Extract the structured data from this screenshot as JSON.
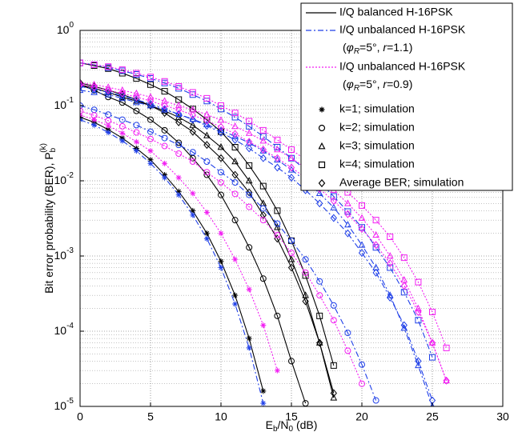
{
  "chart_data": {
    "type": "line",
    "log_y": true,
    "grid": true,
    "minor_grid": true,
    "xlabel": [
      "E",
      "b",
      "/N",
      "0",
      " (dB)"
    ],
    "ylabel": [
      "Bit error probability (BER), P",
      "b",
      "(k)"
    ],
    "xlim": [
      0,
      30
    ],
    "xticks": [
      0,
      5,
      10,
      15,
      20,
      25,
      30
    ],
    "ylim": [
      1e-05,
      1
    ],
    "yticks": [
      {
        "value": 1e-05,
        "label": "10",
        "exponent": "-5"
      },
      {
        "value": 0.0001,
        "label": "10",
        "exponent": "-4"
      },
      {
        "value": 0.001,
        "label": "10",
        "exponent": "-3"
      },
      {
        "value": 0.01,
        "label": "10",
        "exponent": "-2"
      },
      {
        "value": 0.1,
        "label": "10",
        "exponent": "-1"
      },
      {
        "value": 1,
        "label": "10",
        "exponent": "0"
      }
    ],
    "legend": "upper right",
    "line_styles": [
      {
        "name": "I/Q balanced H-16PSK",
        "color": "#000000",
        "dash": "none"
      },
      {
        "name": "I/Q unbalanced H-16PSK",
        "note": [
          "(",
          "φ",
          "R",
          "=5°, ",
          "r",
          "=1.1)"
        ],
        "color": "#1f3fe8",
        "dash": "7 3 2 3"
      },
      {
        "name": "I/Q unbalanced H-16PSK",
        "note": [
          "(",
          "φ",
          "R",
          "=5°, ",
          "r",
          "=0.9)"
        ],
        "color": "#f21ef2",
        "dash": "2 2"
      }
    ],
    "marker_styles": [
      {
        "name": "k=1; simulation",
        "marker": "star"
      },
      {
        "name": "k=2; simulation",
        "marker": "circle"
      },
      {
        "name": "k=3; simulation",
        "marker": "triangle"
      },
      {
        "name": "k=4; simulation",
        "marker": "square"
      },
      {
        "name": "Average BER; simulation",
        "marker": "diamond"
      }
    ],
    "x": [
      0,
      1,
      2,
      3,
      4,
      5,
      6,
      7,
      8,
      9,
      10,
      11,
      12,
      13,
      14,
      15,
      16,
      17,
      18,
      19,
      20,
      21,
      22,
      23,
      24,
      25,
      26
    ],
    "groups": [
      {
        "curves": [
          {
            "values": [
              0.07,
              0.06,
              0.048,
              0.037,
              0.027,
              0.019,
              0.012,
              0.0072,
              0.004,
              0.002,
              0.00085,
              0.0003,
              8e-05,
              1.6e-05,
              null,
              null,
              null,
              null,
              null,
              null,
              null,
              null,
              null,
              null,
              null,
              null,
              null
            ]
          },
          {
            "values": [
              0.19,
              0.16,
              0.13,
              0.11,
              0.085,
              0.065,
              0.047,
              0.032,
              0.02,
              0.012,
              0.0065,
              0.003,
              0.0013,
              0.0005,
              0.00016,
              4e-05,
              1.1e-05,
              null,
              null,
              null,
              null,
              null,
              null,
              null,
              null,
              null,
              null
            ]
          },
          {
            "values": [
              0.19,
              0.17,
              0.15,
              0.13,
              0.115,
              0.1,
              0.085,
              0.07,
              0.055,
              0.04,
              0.028,
              0.018,
              0.01,
              0.005,
              0.0024,
              0.0009,
              0.0003,
              7e-05,
              1.3e-05,
              null,
              null,
              null,
              null,
              null,
              null,
              null,
              null
            ]
          },
          {
            "values": [
              0.37,
              0.34,
              0.31,
              0.27,
              0.23,
              0.19,
              0.155,
              0.12,
              0.09,
              0.065,
              0.045,
              0.028,
              0.016,
              0.0085,
              0.004,
              0.0016,
              0.00055,
              0.00016,
              3.5e-05,
              null,
              null,
              null,
              null,
              null,
              null,
              null,
              null
            ]
          },
          {
            "values": [
              0.2,
              0.18,
              0.16,
              0.14,
              0.12,
              0.1,
              0.08,
              0.06,
              0.045,
              0.03,
              0.02,
              0.012,
              0.007,
              0.0035,
              0.0017,
              0.0007,
              0.00025,
              7e-05,
              1.5e-05,
              null,
              null,
              null,
              null,
              null,
              null,
              null,
              null
            ]
          }
        ]
      },
      {
        "curves": [
          {
            "values": [
              0.065,
              0.055,
              0.044,
              0.034,
              0.025,
              0.017,
              0.011,
              0.0065,
              0.0035,
              0.0017,
              0.0007,
              0.00023,
              6e-05,
              1.1e-05,
              null,
              null,
              null,
              null,
              null,
              null,
              null,
              null,
              null,
              null,
              null,
              null,
              null
            ]
          },
          {
            "values": [
              0.1,
              0.088,
              0.076,
              0.065,
              0.055,
              0.045,
              0.037,
              0.03,
              0.024,
              0.018,
              0.013,
              0.0095,
              0.0065,
              0.0043,
              0.0027,
              0.0016,
              0.0009,
              0.00046,
              0.00022,
              9.5e-05,
              3.6e-05,
              1.2e-05,
              null,
              null,
              null,
              null,
              null
            ]
          },
          {
            "values": [
              0.16,
              0.15,
              0.14,
              0.125,
              0.11,
              0.1,
              0.088,
              0.077,
              0.066,
              0.056,
              0.047,
              0.039,
              0.032,
              0.025,
              0.019,
              0.014,
              0.01,
              0.0068,
              0.0044,
              0.0026,
              0.0014,
              0.0007,
              0.0003,
              0.00011,
              3.5e-05,
              1e-05,
              null
            ]
          },
          {
            "values": [
              0.37,
              0.35,
              0.32,
              0.29,
              0.26,
              0.23,
              0.2,
              0.17,
              0.14,
              0.115,
              0.09,
              0.07,
              0.053,
              0.039,
              0.028,
              0.02,
              0.014,
              0.0095,
              0.0062,
              0.0039,
              0.0024,
              0.0013,
              0.0007,
              0.00033,
              0.00014,
              4.5e-05,
              null
            ]
          },
          {
            "values": [
              0.18,
              0.165,
              0.15,
              0.135,
              0.12,
              0.105,
              0.09,
              0.077,
              0.065,
              0.054,
              0.044,
              0.035,
              0.027,
              0.02,
              0.015,
              0.011,
              0.0075,
              0.005,
              0.0032,
              0.002,
              0.0011,
              0.0006,
              0.00028,
              0.00012,
              4e-05,
              1.2e-05,
              null
            ]
          }
        ]
      },
      {
        "curves": [
          {
            "values": [
              0.075,
              0.065,
              0.054,
              0.043,
              0.033,
              0.025,
              0.017,
              0.011,
              0.0068,
              0.0038,
              0.002,
              0.0009,
              0.00036,
              0.00012,
              3e-05,
              null,
              null,
              null,
              null,
              null,
              null,
              null,
              null,
              null,
              null,
              null,
              null
            ]
          },
          {
            "values": [
              0.085,
              0.074,
              0.063,
              0.053,
              0.044,
              0.036,
              0.029,
              0.023,
              0.018,
              0.013,
              0.0095,
              0.0067,
              0.0045,
              0.003,
              0.0019,
              0.0011,
              0.0006,
              0.0003,
              0.00014,
              5.5e-05,
              2e-05,
              null,
              null,
              null,
              null,
              null,
              null
            ]
          },
          {
            "values": [
              0.2,
              0.19,
              0.175,
              0.16,
              0.145,
              0.13,
              0.115,
              0.1,
              0.088,
              0.076,
              0.064,
              0.053,
              0.043,
              0.034,
              0.026,
              0.02,
              0.015,
              0.011,
              0.0075,
              0.005,
              0.0032,
              0.0019,
              0.001,
              0.00048,
              0.0002,
              7e-05,
              2.2e-05
            ]
          },
          {
            "values": [
              0.37,
              0.35,
              0.33,
              0.3,
              0.27,
              0.24,
              0.21,
              0.18,
              0.15,
              0.125,
              0.1,
              0.08,
              0.062,
              0.047,
              0.035,
              0.026,
              0.019,
              0.014,
              0.01,
              0.007,
              0.0047,
              0.003,
              0.0018,
              0.00095,
              0.00045,
              0.00018,
              6e-05
            ]
          },
          {
            "values": [
              0.19,
              0.175,
              0.16,
              0.145,
              0.13,
              0.115,
              0.1,
              0.088,
              0.075,
              0.063,
              0.052,
              0.042,
              0.033,
              0.026,
              0.02,
              0.015,
              0.011,
              0.0078,
              0.0054,
              0.0036,
              0.0023,
              0.0014,
              0.0008,
              0.0004,
              0.00018,
              7e-05,
              2.2e-05
            ]
          }
        ]
      }
    ]
  }
}
